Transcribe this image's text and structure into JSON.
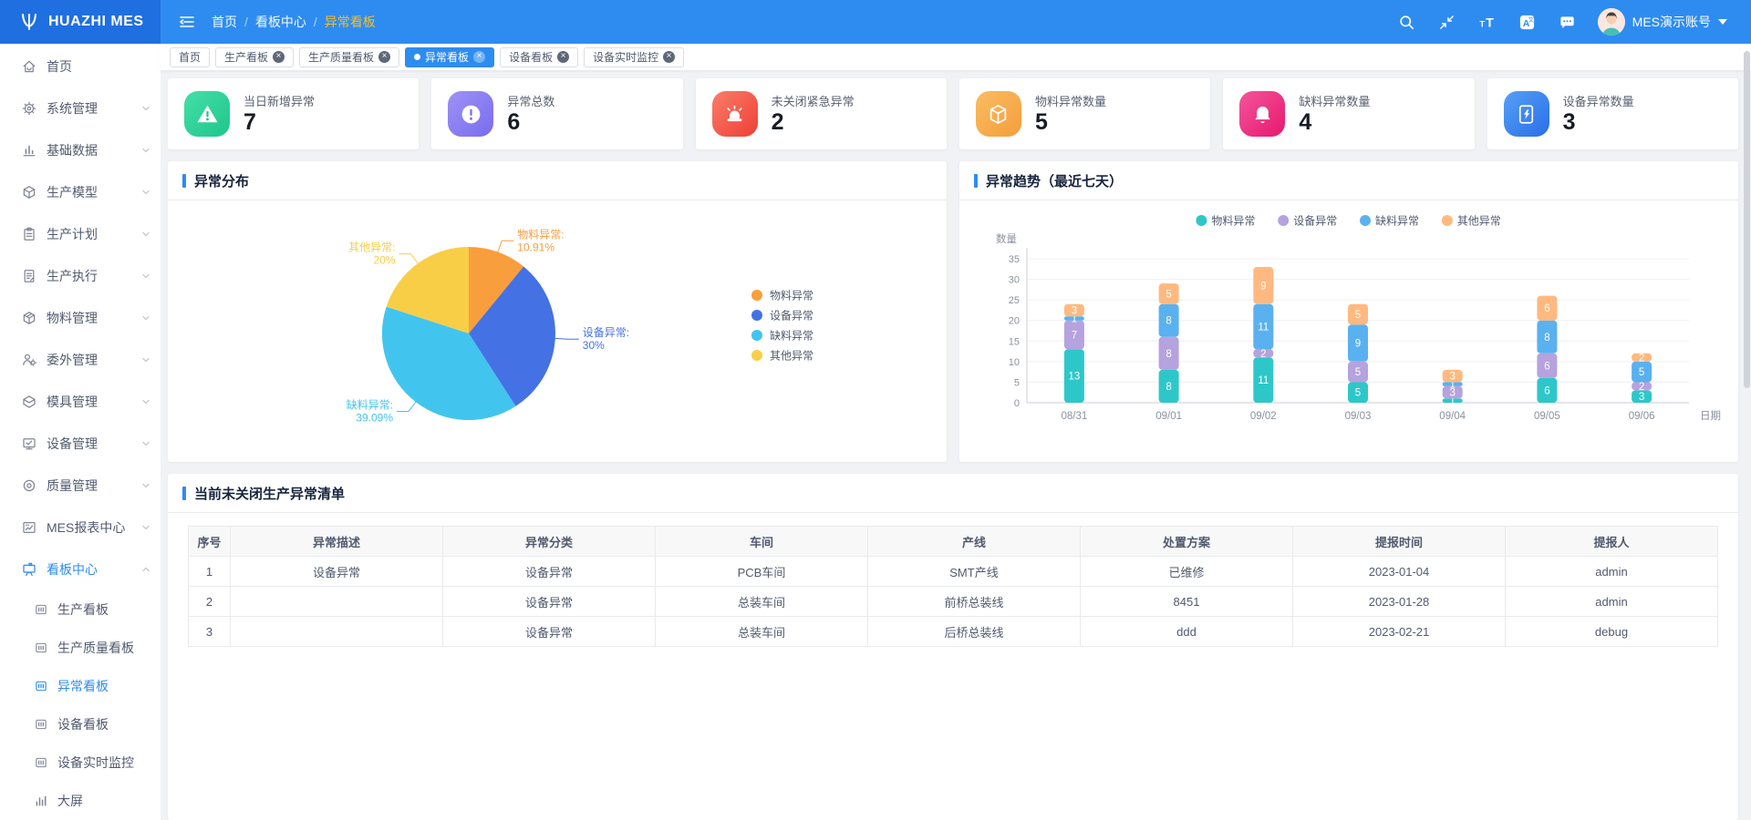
{
  "header": {
    "logo_text": "HUAZHI MES",
    "menu_icon": "menu-fold",
    "action_icons": [
      "search",
      "compress",
      "font-size",
      "translate",
      "message"
    ],
    "user_name": "MES演示账号"
  },
  "breadcrumb": {
    "items": [
      "首页",
      "看板中心",
      "异常看板"
    ],
    "separator": "/"
  },
  "tabs": [
    {
      "label": "首页",
      "closable": false,
      "active": false
    },
    {
      "label": "生产看板",
      "closable": true,
      "active": false
    },
    {
      "label": "生产质量看板",
      "closable": true,
      "active": false
    },
    {
      "label": "异常看板",
      "closable": true,
      "active": true
    },
    {
      "label": "设备看板",
      "closable": true,
      "active": false
    },
    {
      "label": "设备实时监控",
      "closable": true,
      "active": false
    }
  ],
  "sidebar": {
    "items": [
      {
        "label": "首页",
        "icon": "home-icon",
        "expandable": false
      },
      {
        "label": "系统管理",
        "icon": "gear-icon",
        "expandable": true
      },
      {
        "label": "基础数据",
        "icon": "database-bars-icon",
        "expandable": true
      },
      {
        "label": "生产模型",
        "icon": "model-cube-icon",
        "expandable": true
      },
      {
        "label": "生产计划",
        "icon": "plan-clipboard-icon",
        "expandable": true
      },
      {
        "label": "生产执行",
        "icon": "execute-document-icon",
        "expandable": true
      },
      {
        "label": "物料管理",
        "icon": "material-package-icon",
        "expandable": true
      },
      {
        "label": "委外管理",
        "icon": "outsource-user-gear-icon",
        "expandable": true
      },
      {
        "label": "模具管理",
        "icon": "mold-box-icon",
        "expandable": true
      },
      {
        "label": "设备管理",
        "icon": "equipment-monitor-icon",
        "expandable": true
      },
      {
        "label": "质量管理",
        "icon": "quality-target-icon",
        "expandable": true
      },
      {
        "label": "MES报表中心",
        "icon": "report-chart-icon",
        "expandable": true
      },
      {
        "label": "看板中心",
        "icon": "board-easel-icon",
        "expandable": true,
        "expanded": true,
        "active": true,
        "children": [
          {
            "label": "生产看板",
            "icon": "dashboard-panel-icon",
            "active": false
          },
          {
            "label": "生产质量看板",
            "icon": "dashboard-panel-icon",
            "active": false
          },
          {
            "label": "异常看板",
            "icon": "dashboard-panel-icon",
            "active": true
          },
          {
            "label": "设备看板",
            "icon": "dashboard-panel-icon",
            "active": false
          },
          {
            "label": "设备实时监控",
            "icon": "dashboard-panel-icon",
            "active": false
          },
          {
            "label": "大屏",
            "icon": "big-screen-bars-icon",
            "active": false
          }
        ]
      }
    ]
  },
  "stat_cards": [
    {
      "label": "当日新增异常",
      "value": "7",
      "icon": "warning-triangle",
      "color": "#45dfa8",
      "color2": "#1ec68c"
    },
    {
      "label": "异常总数",
      "value": "6",
      "icon": "exclamation-circle",
      "color": "#9d92f6",
      "color2": "#7a6cee"
    },
    {
      "label": "未关闭紧急异常",
      "value": "2",
      "icon": "siren",
      "color": "#fa7d6a",
      "color2": "#ee3f35"
    },
    {
      "label": "物料异常数量",
      "value": "5",
      "icon": "material-box",
      "color": "#fabc62",
      "color2": "#f59e3b"
    },
    {
      "label": "缺料异常数量",
      "value": "4",
      "icon": "bell",
      "color": "#f4559b",
      "color2": "#e7186e"
    },
    {
      "label": "设备异常数量",
      "value": "3",
      "icon": "device",
      "color": "#55a0f5",
      "color2": "#2a6ee8"
    }
  ],
  "panels": {
    "pie_title": "异常分布",
    "trend_title": "异常趋势（最近七天）",
    "table_title": "当前未关闭生产异常清单"
  },
  "chart_data": [
    {
      "type": "pie",
      "title": "异常分布",
      "legend_position": "right",
      "slices": [
        {
          "name": "物料异常",
          "pct": 10.91,
          "color": "#f99e3c"
        },
        {
          "name": "设备异常",
          "pct": 30,
          "color": "#4472e4"
        },
        {
          "name": "缺料异常",
          "pct": 39.09,
          "color": "#41c5ee"
        },
        {
          "name": "其他异常",
          "pct": 20,
          "color": "#f8ce47"
        }
      ]
    },
    {
      "type": "bar",
      "stacked": true,
      "title": "异常趋势（最近七天）",
      "categories": [
        "08/31",
        "09/01",
        "09/02",
        "09/03",
        "09/04",
        "09/05",
        "09/06"
      ],
      "series": [
        {
          "name": "物料异常",
          "color": "#2ec7c9",
          "values": [
            13,
            8,
            11,
            5,
            1,
            6,
            3
          ]
        },
        {
          "name": "设备异常",
          "color": "#b6a2de",
          "values": [
            7,
            8,
            2,
            5,
            3,
            6,
            2
          ]
        },
        {
          "name": "缺料异常",
          "color": "#5ab1ef",
          "values": [
            1,
            8,
            11,
            9,
            1,
            8,
            5
          ]
        },
        {
          "name": "其他异常",
          "color": "#ffb980",
          "values": [
            3,
            5,
            9,
            5,
            3,
            6,
            2
          ]
        }
      ],
      "ylabel": "数量",
      "xlabel": "日期",
      "ylim": [
        0,
        35
      ],
      "ytick_step": 5,
      "legend_position": "top",
      "grid": true
    }
  ],
  "table": {
    "columns": [
      "序号",
      "异常描述",
      "异常分类",
      "车间",
      "产线",
      "处置方案",
      "提报时间",
      "提报人"
    ],
    "rows": [
      [
        "1",
        "设备异常",
        "设备异常",
        "PCB车间",
        "SMT产线",
        "已维修",
        "2023-01-04",
        "admin"
      ],
      [
        "2",
        "",
        "设备异常",
        "总装车间",
        "前桥总装线",
        "8451",
        "2023-01-28",
        "admin"
      ],
      [
        "3",
        "",
        "设备异常",
        "总装车间",
        "后桥总装线",
        "ddd",
        "2023-02-21",
        "debug"
      ]
    ]
  }
}
